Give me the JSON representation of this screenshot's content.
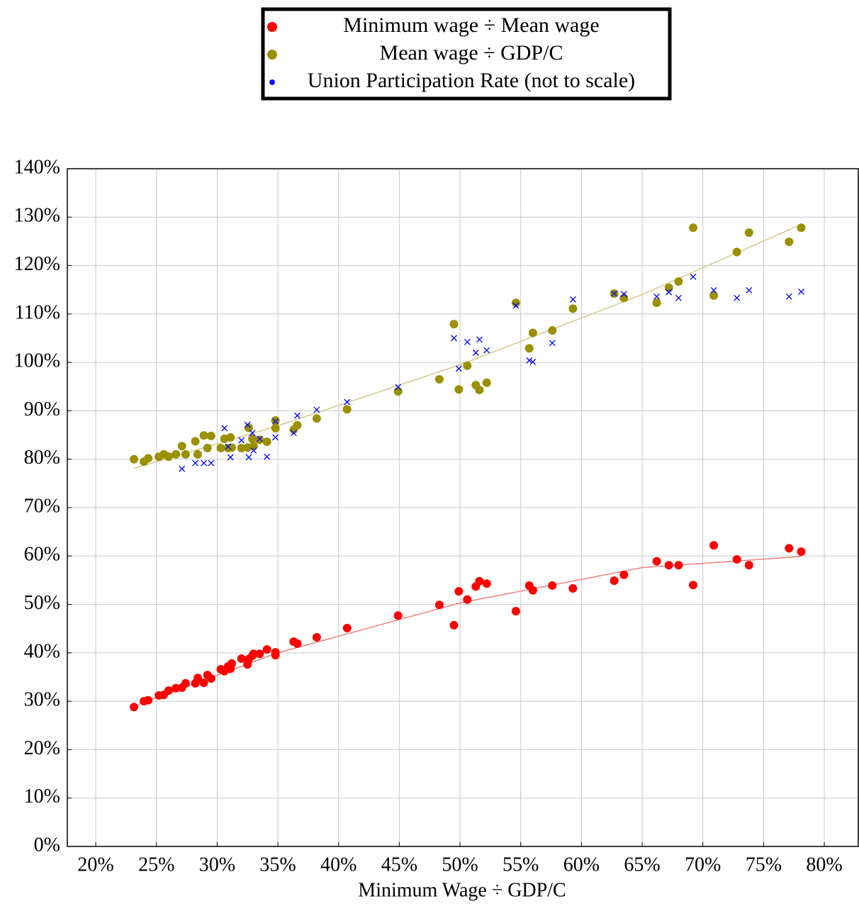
{
  "chart_data": {
    "type": "scatter",
    "legend": "top",
    "grid": true,
    "xlabel": "Minimum Wage ÷ GDP/C",
    "xlim": [
      17.66,
      82.8
    ],
    "ylim": [
      0,
      140
    ],
    "xticks": [
      {
        "value": 20,
        "label": "20%"
      },
      {
        "value": 25,
        "label": "25%"
      },
      {
        "value": 30,
        "label": "30%"
      },
      {
        "value": 35,
        "label": "35%"
      },
      {
        "value": 40,
        "label": "40%"
      },
      {
        "value": 45,
        "label": "45%"
      },
      {
        "value": 50,
        "label": "50%"
      },
      {
        "value": 55,
        "label": "55%"
      },
      {
        "value": 60,
        "label": "60%"
      },
      {
        "value": 65,
        "label": "65%"
      },
      {
        "value": 70,
        "label": "70%"
      },
      {
        "value": 75,
        "label": "75%"
      },
      {
        "value": 80,
        "label": "80%"
      }
    ],
    "yticks": [
      {
        "value": 0,
        "label": "0%"
      },
      {
        "value": 10,
        "label": "10%"
      },
      {
        "value": 20,
        "label": "20%"
      },
      {
        "value": 30,
        "label": "30%"
      },
      {
        "value": 40,
        "label": "40%"
      },
      {
        "value": 50,
        "label": "50%"
      },
      {
        "value": 60,
        "label": "60%"
      },
      {
        "value": 70,
        "label": "70%"
      },
      {
        "value": 80,
        "label": "80%"
      },
      {
        "value": 90,
        "label": "90%"
      },
      {
        "value": 100,
        "label": "100%"
      },
      {
        "value": 110,
        "label": "110%"
      },
      {
        "value": 120,
        "label": "120%"
      },
      {
        "value": 130,
        "label": "130%"
      },
      {
        "value": 140,
        "label": "140%"
      }
    ],
    "x": [
      23.15,
      23.97,
      24.32,
      25.2,
      25.6,
      26.0,
      26.6,
      27.1,
      27.4,
      28.2,
      28.4,
      28.9,
      29.2,
      29.5,
      30.3,
      30.6,
      30.9,
      31.1,
      31.2,
      32.0,
      32.5,
      32.6,
      32.9,
      33.0,
      33.5,
      34.1,
      34.8,
      34.8,
      36.3,
      36.6,
      38.2,
      40.7,
      44.9,
      48.3,
      49.5,
      49.9,
      50.6,
      51.3,
      51.6,
      52.2,
      54.6,
      55.7,
      56.0,
      57.6,
      59.3,
      62.7,
      63.5,
      66.2,
      67.2,
      68.0,
      69.2,
      70.9,
      72.8,
      73.8,
      77.1,
      78.1
    ],
    "series": [
      {
        "name": "Minimum wage ÷ Mean wage",
        "color": "#ff0000",
        "marker": "circle",
        "values": [
          28.8,
          30.0,
          30.2,
          31.2,
          31.3,
          32.2,
          32.7,
          32.8,
          33.7,
          33.7,
          34.8,
          33.8,
          35.4,
          34.7,
          36.6,
          36.2,
          37.2,
          36.7,
          37.8,
          38.8,
          37.6,
          38.7,
          39.4,
          39.8,
          39.8,
          40.7,
          40.1,
          39.5,
          42.3,
          41.9,
          43.2,
          45.1,
          47.7,
          49.9,
          45.7,
          52.7,
          51.0,
          53.7,
          54.8,
          54.3,
          48.6,
          53.9,
          52.9,
          53.9,
          53.3,
          54.9,
          56.1,
          58.9,
          58.1,
          58.1,
          54.0,
          62.2,
          59.3,
          58.1,
          61.6,
          60.9
        ]
      },
      {
        "name": "Mean wage ÷ GDP/C",
        "color": "#9a9000",
        "marker": "circle",
        "values": [
          80.0,
          79.5,
          80.2,
          80.5,
          81.0,
          80.5,
          81.0,
          82.7,
          81.0,
          83.7,
          81.0,
          84.9,
          82.3,
          84.8,
          82.3,
          84.2,
          82.3,
          84.5,
          82.4,
          82.3,
          82.4,
          86.5,
          84.2,
          82.7,
          84.0,
          83.6,
          88.0,
          86.4,
          86.1,
          87.0,
          88.4,
          90.3,
          94.0,
          96.5,
          107.9,
          94.4,
          99.3,
          95.3,
          94.3,
          95.8,
          112.3,
          102.9,
          106.1,
          106.6,
          111.1,
          114.2,
          113.3,
          112.3,
          115.4,
          116.7,
          127.8,
          113.8,
          122.8,
          126.8,
          124.9,
          127.8
        ]
      },
      {
        "name": "Union Participation Rate (not to scale)",
        "color": "#0000ff",
        "marker": "cross",
        "values": [
          null,
          null,
          null,
          null,
          null,
          null,
          null,
          78.0,
          null,
          79.2,
          null,
          79.2,
          null,
          79.2,
          null,
          86.4,
          82.6,
          80.4,
          null,
          83.9,
          87.1,
          80.4,
          85.4,
          81.8,
          84.2,
          80.5,
          87.8,
          84.5,
          85.4,
          89.0,
          90.2,
          91.8,
          94.9,
          null,
          105.0,
          98.7,
          104.2,
          102.0,
          104.7,
          102.5,
          111.7,
          100.4,
          100.1,
          104.0,
          113.0,
          114.2,
          114.1,
          113.6,
          114.5,
          113.3,
          117.7,
          114.9,
          113.3,
          114.9,
          113.6,
          114.6
        ]
      }
    ],
    "trendlines": [
      {
        "color": "#f08080",
        "x": [
          23.15,
          35,
          50,
          65,
          78.1
        ],
        "values": [
          29.0,
          40.0,
          50.3,
          57.6,
          59.9
        ]
      },
      {
        "color": "#d2c98c",
        "x": [
          23.15,
          35,
          50,
          65,
          78.1
        ],
        "values": [
          78.1,
          86.9,
          99.5,
          114.0,
          128.5
        ]
      }
    ]
  }
}
